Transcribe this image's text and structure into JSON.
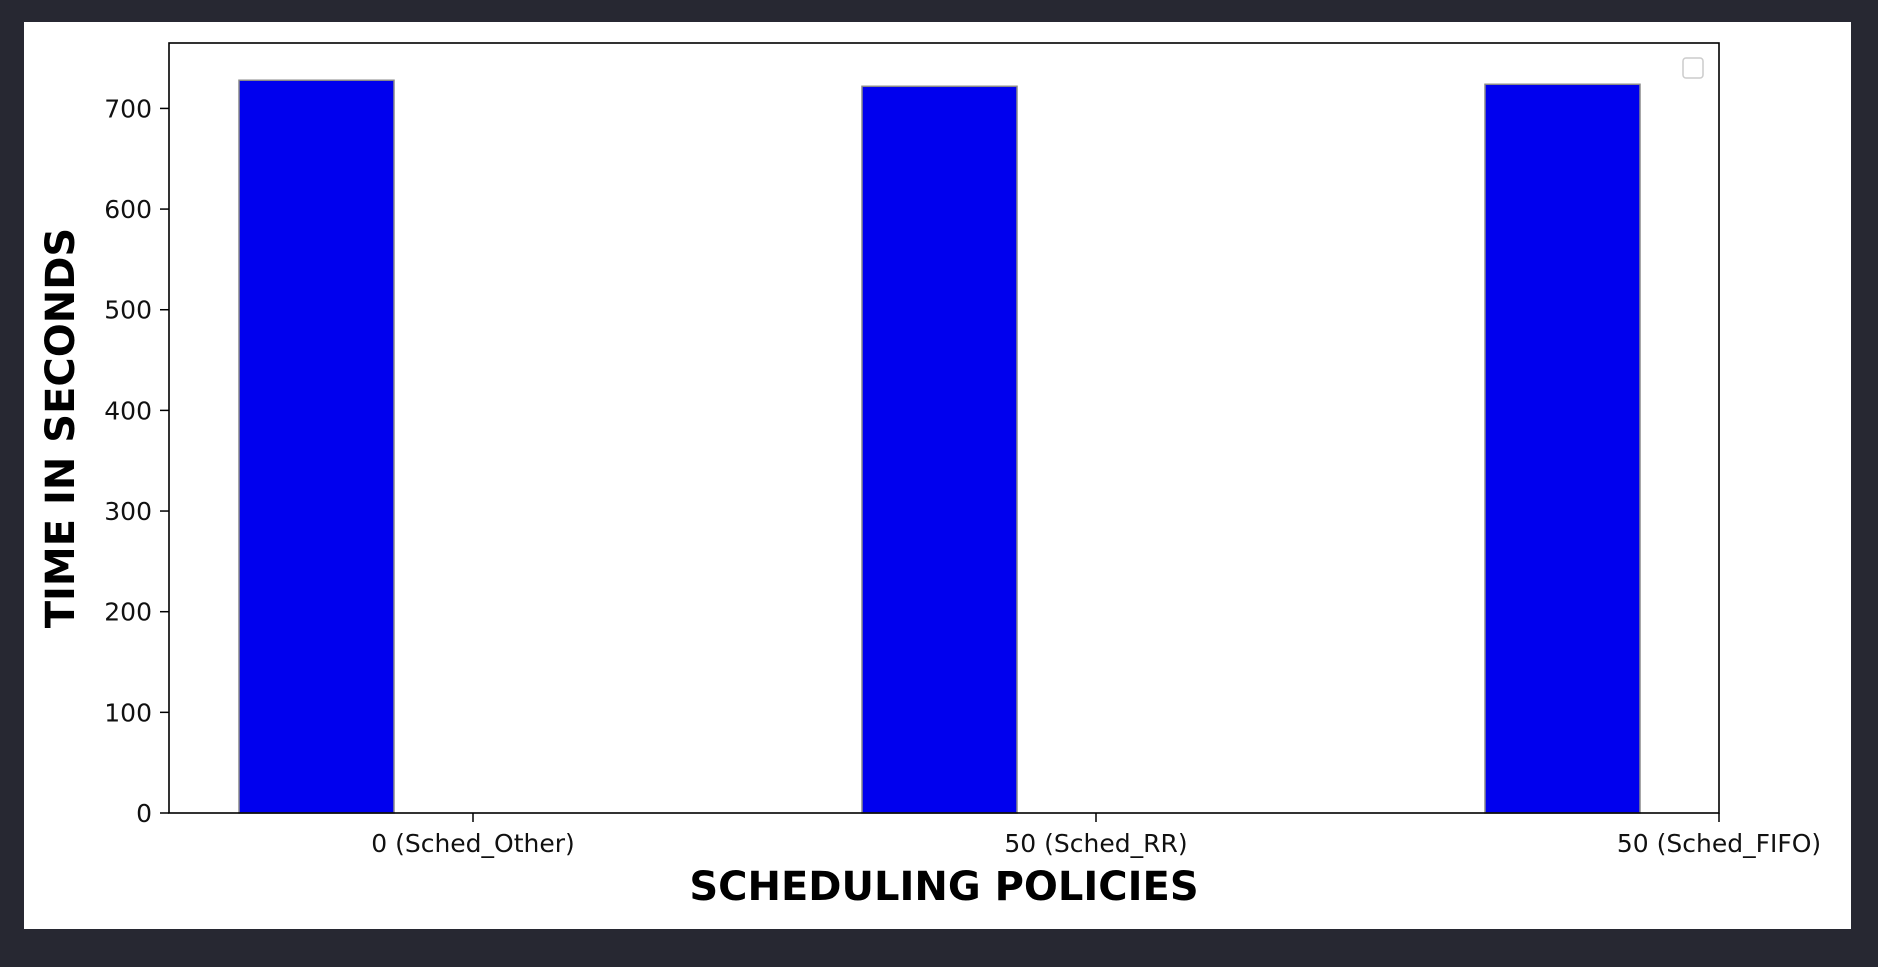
{
  "colors": {
    "page_background": "#272832",
    "figure_background": "#ffffff",
    "bar_fill": "#0000ee",
    "bar_edge": "#8a8a8a",
    "axis": "#000000",
    "text": "#111111",
    "legend_border": "#cccccc"
  },
  "chart_data": {
    "type": "bar",
    "title": "",
    "xlabel": "SCHEDULING POLICIES",
    "ylabel": "TIME IN SECONDS",
    "categories": [
      "0 (Sched_Other)",
      "50 (Sched_RR)",
      "50 (Sched_FIFO)"
    ],
    "values": [
      728,
      722,
      724
    ],
    "ylim": [
      0,
      765
    ],
    "yticks": [
      0,
      100,
      200,
      300,
      400,
      500,
      600,
      700
    ],
    "grid": false,
    "legend": {
      "placement": "top-right",
      "entries": []
    }
  }
}
